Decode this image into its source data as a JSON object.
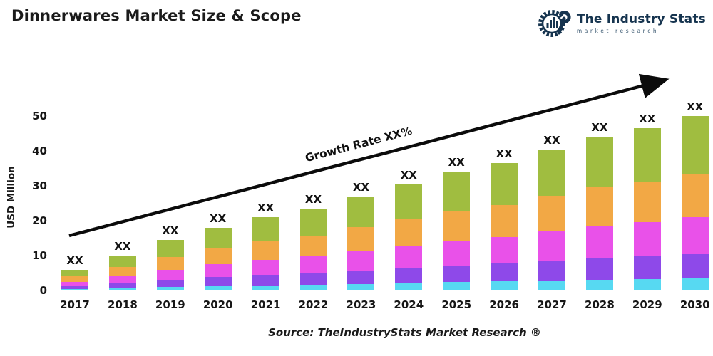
{
  "title": "Dinnerwares Market Size & Scope",
  "logo": {
    "name": "The Industry Stats",
    "tagline": "market research",
    "color": "#16344f"
  },
  "chart_data": {
    "type": "bar",
    "stacked": true,
    "title": "Dinnerwares Market Size & Scope",
    "ylabel": "USD Million",
    "xlabel": "",
    "ylim": [
      0,
      55
    ],
    "yticks": [
      0,
      10,
      20,
      30,
      40,
      50
    ],
    "grid": false,
    "legend": "none",
    "categories": [
      "2017",
      "2018",
      "2019",
      "2020",
      "2021",
      "2022",
      "2023",
      "2024",
      "2025",
      "2026",
      "2027",
      "2028",
      "2029",
      "2030"
    ],
    "totals": [
      6.0,
      10.0,
      14.5,
      18.0,
      21.0,
      23.5,
      27.0,
      30.5,
      34.0,
      36.5,
      40.5,
      44.0,
      46.5,
      50.0
    ],
    "bar_labels": [
      "XX",
      "XX",
      "XX",
      "XX",
      "XX",
      "XX",
      "XX",
      "XX",
      "XX",
      "XX",
      "XX",
      "XX",
      "XX",
      "XX"
    ],
    "annotation": "Growth Rate XX%",
    "series": [
      {
        "name": "segment-cyan",
        "color": "#57d9f2",
        "values": [
          0.4,
          0.7,
          1.0,
          1.3,
          1.5,
          1.6,
          1.9,
          2.1,
          2.4,
          2.6,
          2.8,
          3.1,
          3.3,
          3.5
        ]
      },
      {
        "name": "segment-purple",
        "color": "#8e49e9",
        "values": [
          0.8,
          1.4,
          2.0,
          2.5,
          2.9,
          3.3,
          3.8,
          4.3,
          4.8,
          5.1,
          5.7,
          6.2,
          6.5,
          7.0
        ]
      },
      {
        "name": "segment-magenta",
        "color": "#e951e9",
        "values": [
          1.3,
          2.1,
          3.0,
          3.8,
          4.4,
          4.9,
          5.7,
          6.4,
          7.1,
          7.7,
          8.5,
          9.2,
          9.8,
          10.5
        ]
      },
      {
        "name": "segment-orange",
        "color": "#f2a845",
        "values": [
          1.5,
          2.5,
          3.6,
          4.5,
          5.3,
          5.9,
          6.7,
          7.6,
          8.5,
          9.1,
          10.1,
          11.0,
          11.6,
          12.5
        ]
      },
      {
        "name": "segment-green",
        "color": "#a0bd40",
        "values": [
          2.0,
          3.3,
          4.9,
          5.9,
          6.9,
          7.8,
          8.9,
          10.1,
          11.2,
          12.0,
          13.4,
          14.5,
          15.3,
          16.5
        ]
      }
    ]
  },
  "source": "Source: TheIndustryStats Market Research ®"
}
